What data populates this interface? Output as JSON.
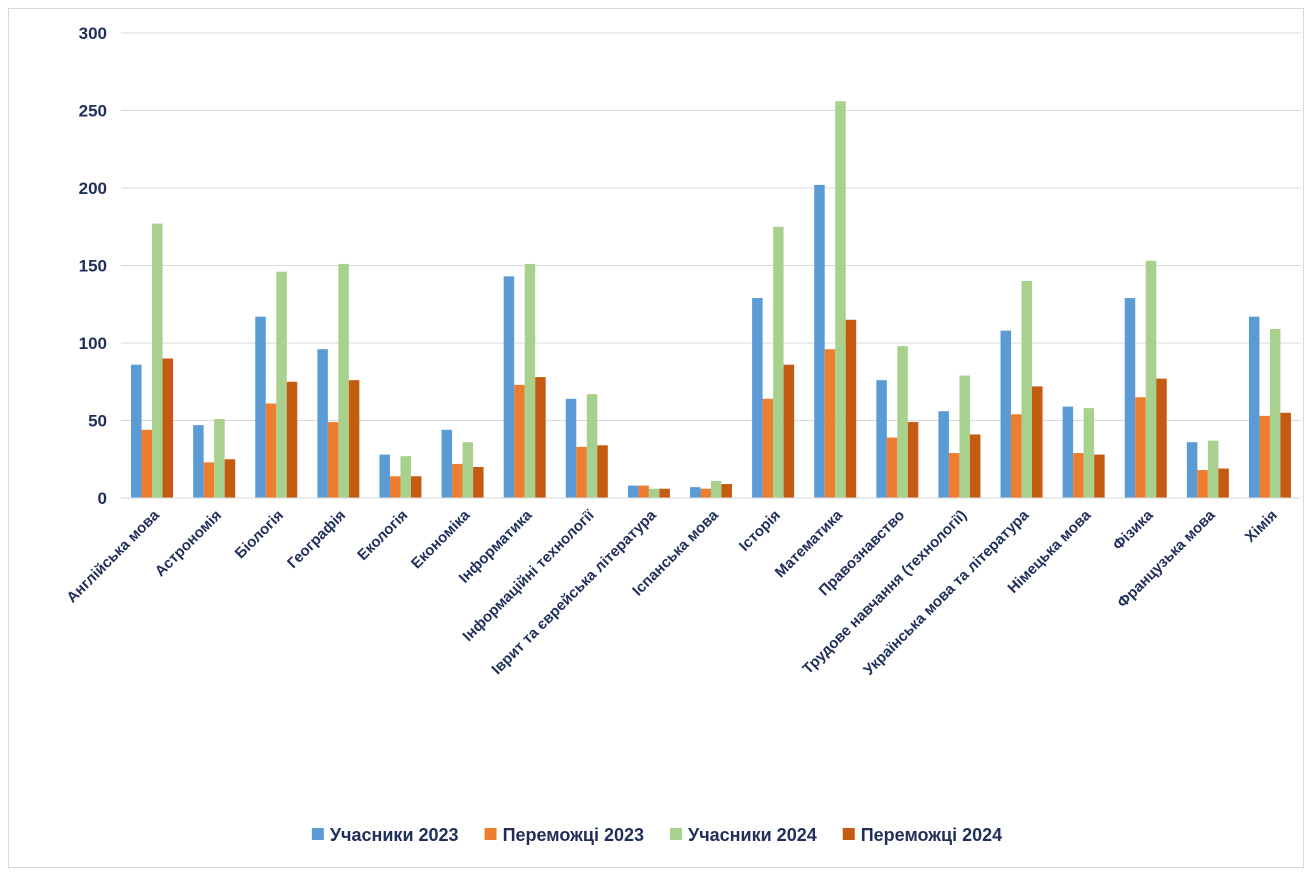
{
  "chart_data": {
    "type": "bar",
    "title": "",
    "xlabel": "",
    "ylabel": "",
    "ylim": [
      0,
      300
    ],
    "yticks": [
      0,
      50,
      100,
      150,
      200,
      250,
      300
    ],
    "grid": true,
    "legend_position": "bottom",
    "categories": [
      "Англійська мова",
      "Астрономія",
      "Біологія",
      "Географія",
      "Екологія",
      "Економіка",
      "Інформатика",
      "Інформаційні технології",
      "Іврит та єврейська література",
      "Іспанська мова",
      "Історія",
      "Математика",
      "Правознавство",
      "Трудове навчання (технології)",
      "Українська мова та література",
      "Німецька мова",
      "Фізика",
      "Французька мова",
      "Хімія"
    ],
    "series": [
      {
        "name": "Учасники 2023",
        "color": "#5b9bd5",
        "values": [
          86,
          47,
          117,
          96,
          28,
          44,
          143,
          64,
          8,
          7,
          129,
          202,
          76,
          56,
          108,
          59,
          129,
          36,
          117
        ]
      },
      {
        "name": "Переможці 2023",
        "color": "#ed7d31",
        "values": [
          44,
          23,
          61,
          49,
          14,
          22,
          73,
          33,
          8,
          6,
          64,
          96,
          39,
          29,
          54,
          29,
          65,
          18,
          53
        ]
      },
      {
        "name": "Учасники 2024",
        "color": "#a9d18e",
        "values": [
          177,
          51,
          146,
          151,
          27,
          36,
          151,
          67,
          6,
          11,
          175,
          256,
          98,
          79,
          140,
          58,
          153,
          37,
          109
        ]
      },
      {
        "name": "Переможці 2024",
        "color": "#c55a11",
        "values": [
          90,
          25,
          75,
          76,
          14,
          20,
          78,
          34,
          6,
          9,
          86,
          115,
          49,
          41,
          72,
          28,
          77,
          19,
          55
        ]
      }
    ]
  }
}
